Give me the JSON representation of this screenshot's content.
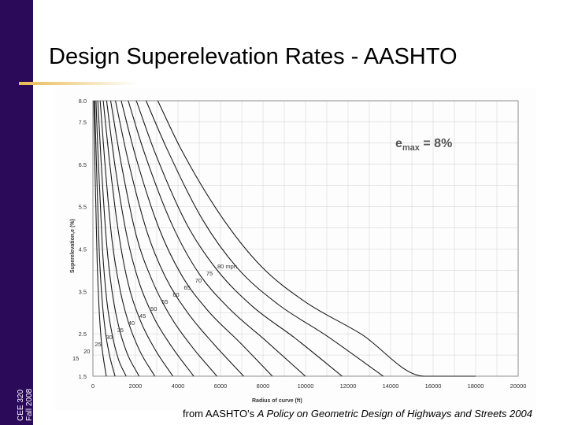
{
  "sidebar": {
    "course": "CEE 320",
    "term": "Fall 2008"
  },
  "slide": {
    "title": "Design Superelevation Rates - AASHTO"
  },
  "citation": {
    "prefix": "from AASHTO's ",
    "book": "A Policy on Geometric Design of Highways and Streets 2004"
  },
  "colors": {
    "sidebar": "#2b0a59",
    "accent": "#e8b94f",
    "curve": "#1a1a1a",
    "grid": "#cfcfcf"
  },
  "chart_data": {
    "type": "line",
    "xlabel": "Radius of curve (ft)",
    "ylabel": "Superelevation,e (%)",
    "emax_label": {
      "base": "e",
      "sub": "max",
      "rest": " = 8%"
    },
    "xlim": [
      0,
      20000
    ],
    "ylim": [
      1.5,
      8.0
    ],
    "x_ticks": [
      0,
      2000,
      4000,
      6000,
      8000,
      10000,
      12000,
      14000,
      16000,
      18000,
      20000
    ],
    "y_ticks": [
      1.5,
      2.5,
      3.5,
      4.5,
      5.5,
      6.5,
      7.5,
      8.0
    ],
    "y_tick_labels": [
      "1.5",
      "2.5",
      "3.5",
      "4.5",
      "5.5",
      "6.5",
      "7.5",
      "8.0"
    ],
    "series": [
      {
        "name": "15",
        "label": "15",
        "values": [
          [
            39,
            8.0
          ],
          [
            100,
            6.3
          ],
          [
            200,
            4.2
          ],
          [
            300,
            3.0
          ],
          [
            400,
            2.3
          ],
          [
            500,
            1.9
          ],
          [
            630,
            1.5
          ]
        ]
      },
      {
        "name": "20",
        "label": "20",
        "values": [
          [
            81,
            8.0
          ],
          [
            150,
            6.8
          ],
          [
            300,
            4.4
          ],
          [
            450,
            3.2
          ],
          [
            600,
            2.5
          ],
          [
            800,
            1.95
          ],
          [
            1040,
            1.5
          ]
        ]
      },
      {
        "name": "25",
        "label": "25",
        "values": [
          [
            144,
            8.0
          ],
          [
            250,
            6.6
          ],
          [
            450,
            4.5
          ],
          [
            650,
            3.3
          ],
          [
            900,
            2.5
          ],
          [
            1200,
            1.9
          ],
          [
            1560,
            1.5
          ]
        ]
      },
      {
        "name": "30",
        "label": "30",
        "values": [
          [
            231,
            8.0
          ],
          [
            380,
            6.6
          ],
          [
            650,
            4.6
          ],
          [
            900,
            3.5
          ],
          [
            1200,
            2.7
          ],
          [
            1600,
            2.05
          ],
          [
            2170,
            1.5
          ]
        ]
      },
      {
        "name": "35",
        "label": "35",
        "values": [
          [
            340,
            8.0
          ],
          [
            550,
            6.6
          ],
          [
            900,
            4.7
          ],
          [
            1250,
            3.6
          ],
          [
            1650,
            2.8
          ],
          [
            2200,
            2.1
          ],
          [
            2910,
            1.5
          ]
        ]
      },
      {
        "name": "40",
        "label": "40",
        "values": [
          [
            485,
            8.0
          ],
          [
            750,
            6.7
          ],
          [
            1200,
            4.9
          ],
          [
            1650,
            3.7
          ],
          [
            2200,
            2.85
          ],
          [
            2900,
            2.15
          ],
          [
            3760,
            1.5
          ]
        ]
      },
      {
        "name": "45",
        "label": "45",
        "values": [
          [
            643,
            8.0
          ],
          [
            1000,
            6.6
          ],
          [
            1600,
            4.8
          ],
          [
            2150,
            3.75
          ],
          [
            2850,
            2.9
          ],
          [
            3700,
            2.2
          ],
          [
            4740,
            1.5
          ]
        ]
      },
      {
        "name": "50",
        "label": "50",
        "values": [
          [
            833,
            8.0
          ],
          [
            1300,
            6.6
          ],
          [
            2050,
            4.8
          ],
          [
            2750,
            3.8
          ],
          [
            3600,
            2.95
          ],
          [
            4650,
            2.2
          ],
          [
            5830,
            1.5
          ]
        ]
      },
      {
        "name": "55",
        "label": "55",
        "values": [
          [
            1060,
            8.0
          ],
          [
            1650,
            6.6
          ],
          [
            2550,
            4.9
          ],
          [
            3400,
            3.85
          ],
          [
            4450,
            3.0
          ],
          [
            5700,
            2.25
          ],
          [
            7090,
            1.5
          ]
        ]
      },
      {
        "name": "60",
        "label": "60",
        "values": [
          [
            1330,
            8.0
          ],
          [
            2000,
            6.7
          ],
          [
            3100,
            5.0
          ],
          [
            4150,
            3.9
          ],
          [
            5400,
            3.05
          ],
          [
            6900,
            2.3
          ],
          [
            8440,
            1.5
          ]
        ]
      },
      {
        "name": "65",
        "label": "65",
        "values": [
          [
            1660,
            8.0
          ],
          [
            2400,
            6.8
          ],
          [
            3700,
            5.1
          ],
          [
            4950,
            3.95
          ],
          [
            6400,
            3.1
          ],
          [
            8100,
            2.35
          ],
          [
            9990,
            1.5
          ]
        ]
      },
      {
        "name": "70",
        "label": "70",
        "values": [
          [
            2040,
            8.0
          ],
          [
            2900,
            6.8
          ],
          [
            4400,
            5.1
          ],
          [
            5850,
            4.0
          ],
          [
            7500,
            3.15
          ],
          [
            9500,
            2.4
          ],
          [
            11720,
            1.5
          ]
        ]
      },
      {
        "name": "75",
        "label": "75",
        "values": [
          [
            2500,
            8.0
          ],
          [
            3450,
            6.9
          ],
          [
            5150,
            5.2
          ],
          [
            6800,
            4.05
          ],
          [
            8700,
            3.2
          ],
          [
            11000,
            2.45
          ],
          [
            13650,
            1.5
          ]
        ]
      },
      {
        "name": "80",
        "label": "80 mph",
        "values": [
          [
            3050,
            8.0
          ],
          [
            4100,
            6.9
          ],
          [
            6000,
            5.3
          ],
          [
            7900,
            4.1
          ],
          [
            10000,
            3.25
          ],
          [
            12600,
            2.5
          ],
          [
            15580,
            1.5
          ],
          [
            18000,
            1.5
          ]
        ]
      }
    ]
  }
}
